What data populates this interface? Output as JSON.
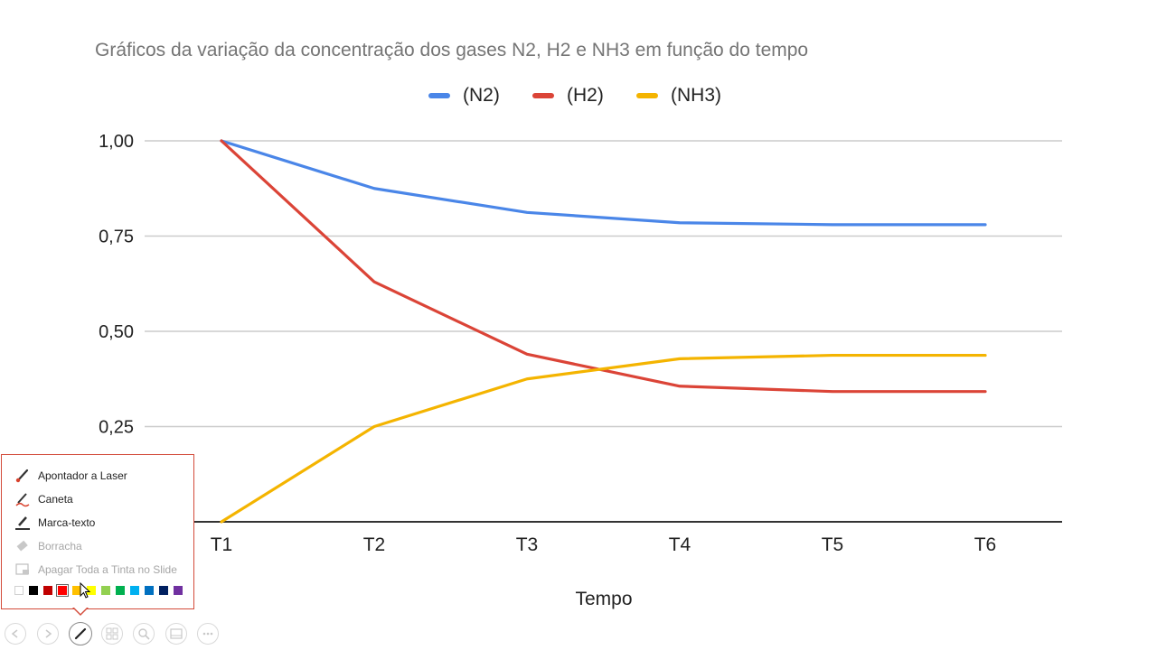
{
  "chart_data": {
    "type": "line",
    "title": "Gráficos da variação da concentração dos gases N2, H2 e NH3 em função do tempo",
    "xlabel": "Tempo",
    "ylabel": "",
    "categories": [
      "T1",
      "T2",
      "T3",
      "T4",
      "T5",
      "T6"
    ],
    "ylim": [
      0,
      1
    ],
    "yticks": [
      "0,25",
      "0,50",
      "0,75",
      "1,00"
    ],
    "ytick_values": [
      0.25,
      0.5,
      0.75,
      1.0
    ],
    "grid": true,
    "legend_position": "top",
    "series": [
      {
        "name": "(N2)",
        "color": "#4a86e8",
        "values": [
          1.0,
          0.875,
          0.812,
          0.785,
          0.78,
          0.78
        ]
      },
      {
        "name": "(H2)",
        "color": "#db4437",
        "values": [
          1.0,
          0.63,
          0.44,
          0.356,
          0.342,
          0.342
        ]
      },
      {
        "name": "(NH3)",
        "color": "#f4b400",
        "values": [
          0.0,
          0.25,
          0.375,
          0.428,
          0.437,
          0.437
        ]
      }
    ]
  },
  "ink_menu": {
    "items": [
      {
        "label": "Apontador a Laser",
        "icon": "laser-pointer-icon",
        "enabled": true
      },
      {
        "label": "Caneta",
        "icon": "pen-icon",
        "enabled": true
      },
      {
        "label": "Marca-texto",
        "icon": "highlighter-icon",
        "enabled": true
      },
      {
        "label": "Borracha",
        "icon": "eraser-icon",
        "enabled": false
      },
      {
        "label": "Apagar Toda a Tinta no Slide",
        "icon": "erase-all-icon",
        "enabled": false
      }
    ],
    "colors": [
      "#ffffff",
      "#000000",
      "#c00000",
      "#ff0000",
      "#ffc000",
      "#ffff00",
      "#92d050",
      "#00b050",
      "#00b0f0",
      "#0070c0",
      "#002060",
      "#7030a0"
    ],
    "selected_color": "#ff0000"
  },
  "toolbar": {
    "buttons": [
      "previous-icon",
      "next-icon",
      "pen-icon",
      "slides-icon",
      "zoom-icon",
      "screen-icon",
      "more-icon"
    ],
    "active": "pen-icon"
  }
}
